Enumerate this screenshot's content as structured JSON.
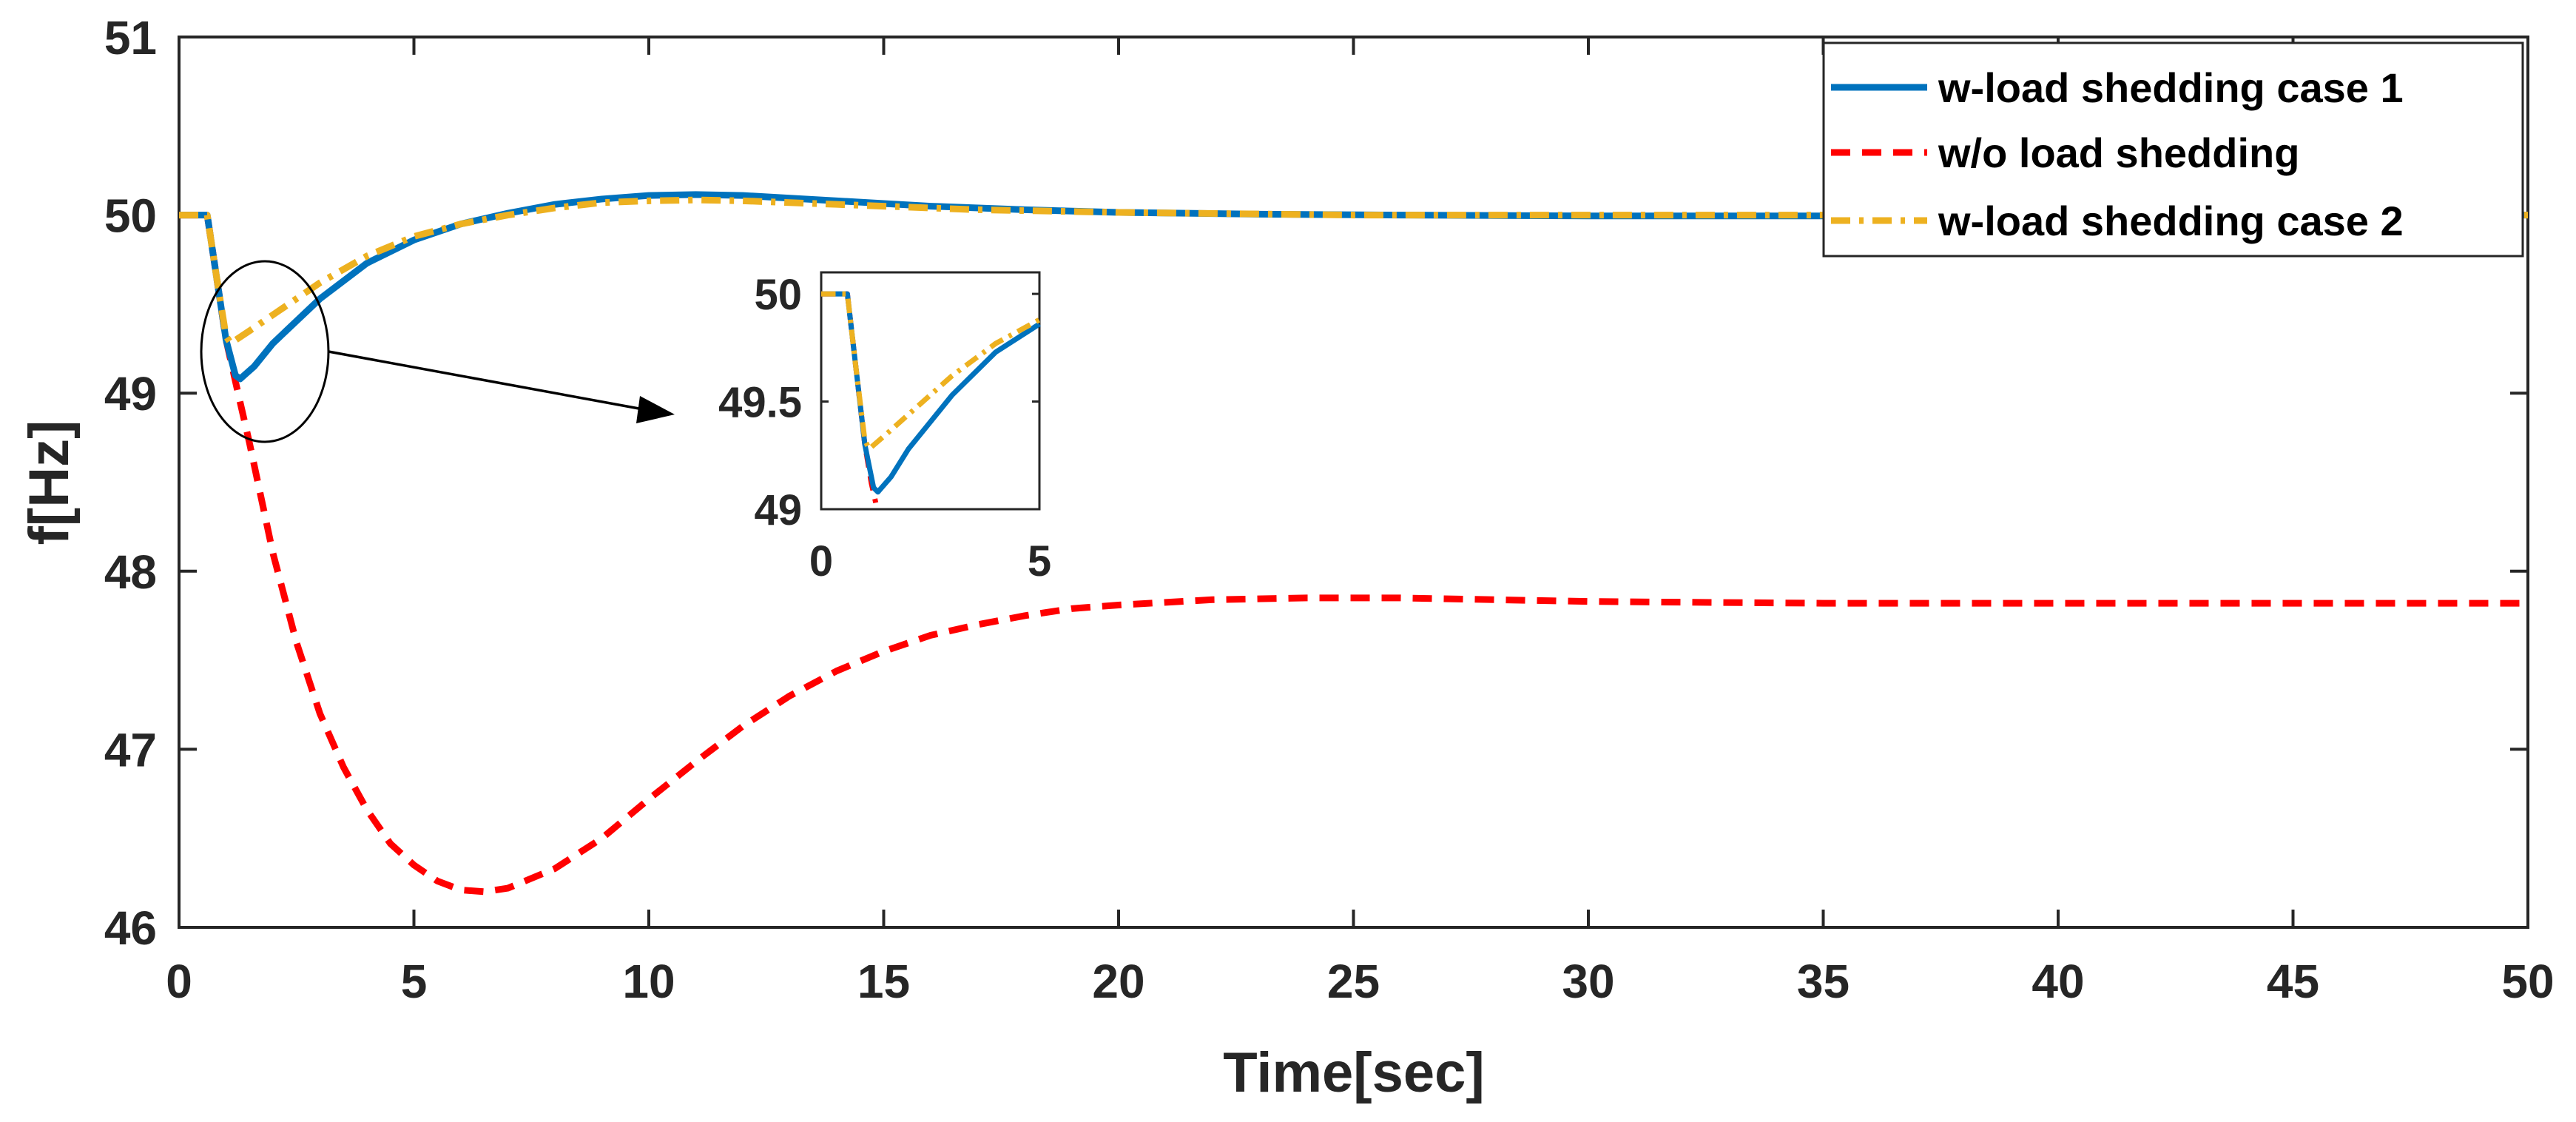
{
  "chart_data": [
    {
      "id": "main",
      "type": "line",
      "title": "",
      "xlabel": "Time[sec]",
      "ylabel": "f[Hz]",
      "xlim": [
        0,
        50
      ],
      "ylim": [
        46,
        51
      ],
      "xticks": [
        0,
        5,
        10,
        15,
        20,
        25,
        30,
        35,
        40,
        45,
        50
      ],
      "yticks": [
        46,
        47,
        48,
        49,
        50,
        51
      ],
      "grid": false,
      "legend_position": "top-right",
      "series": [
        {
          "name": "w-load shedding case 1",
          "color": "#0072BD",
          "style": "solid",
          "points": [
            [
              0,
              50
            ],
            [
              0.5,
              50
            ],
            [
              0.6,
              50
            ],
            [
              0.8,
              49.65
            ],
            [
              1.0,
              49.3
            ],
            [
              1.2,
              49.1
            ],
            [
              1.3,
              49.08
            ],
            [
              1.6,
              49.15
            ],
            [
              2.0,
              49.28
            ],
            [
              3,
              49.53
            ],
            [
              4,
              49.73
            ],
            [
              5,
              49.86
            ],
            [
              6,
              49.95
            ],
            [
              7,
              50.01
            ],
            [
              8,
              50.06
            ],
            [
              9,
              50.09
            ],
            [
              10,
              50.11
            ],
            [
              11,
              50.115
            ],
            [
              12,
              50.11
            ],
            [
              13,
              50.095
            ],
            [
              14,
              50.08
            ],
            [
              15,
              50.065
            ],
            [
              16,
              50.05
            ],
            [
              18,
              50.03
            ],
            [
              20,
              50.015
            ],
            [
              23,
              50.005
            ],
            [
              26,
              50
            ],
            [
              30,
              49.995
            ],
            [
              35,
              49.995
            ],
            [
              40,
              50
            ],
            [
              45,
              50
            ],
            [
              50,
              50
            ]
          ]
        },
        {
          "name": "w/o load shedding",
          "color": "#FF0000",
          "style": "dashed",
          "points": [
            [
              0,
              50
            ],
            [
              0.5,
              50
            ],
            [
              0.6,
              50
            ],
            [
              0.8,
              49.65
            ],
            [
              1.0,
              49.3
            ],
            [
              1.3,
              48.95
            ],
            [
              1.5,
              48.72
            ],
            [
              2,
              48.1
            ],
            [
              2.5,
              47.6
            ],
            [
              3,
              47.2
            ],
            [
              3.5,
              46.9
            ],
            [
              4,
              46.66
            ],
            [
              4.5,
              46.47
            ],
            [
              5,
              46.35
            ],
            [
              5.5,
              46.26
            ],
            [
              6,
              46.21
            ],
            [
              6.5,
              46.2
            ],
            [
              7,
              46.22
            ],
            [
              8,
              46.33
            ],
            [
              9,
              46.5
            ],
            [
              10,
              46.72
            ],
            [
              11,
              46.93
            ],
            [
              12,
              47.13
            ],
            [
              13,
              47.3
            ],
            [
              14,
              47.44
            ],
            [
              15,
              47.55
            ],
            [
              16,
              47.64
            ],
            [
              17,
              47.7
            ],
            [
              18,
              47.75
            ],
            [
              19,
              47.79
            ],
            [
              20,
              47.81
            ],
            [
              22,
              47.84
            ],
            [
              24,
              47.85
            ],
            [
              26,
              47.85
            ],
            [
              28,
              47.84
            ],
            [
              30,
              47.83
            ],
            [
              35,
              47.82
            ],
            [
              40,
              47.82
            ],
            [
              45,
              47.82
            ],
            [
              50,
              47.82
            ]
          ]
        },
        {
          "name": "w-load shedding case 2",
          "color": "#EDB120",
          "style": "dashdot",
          "points": [
            [
              0,
              50
            ],
            [
              0.5,
              50
            ],
            [
              0.6,
              50
            ],
            [
              0.8,
              49.65
            ],
            [
              1.0,
              49.32
            ],
            [
              1.1,
              49.28
            ],
            [
              1.5,
              49.35
            ],
            [
              2,
              49.44
            ],
            [
              3,
              49.62
            ],
            [
              4,
              49.77
            ],
            [
              5,
              49.88
            ],
            [
              6,
              49.95
            ],
            [
              7,
              50.0
            ],
            [
              8,
              50.04
            ],
            [
              9,
              50.07
            ],
            [
              10,
              50.08
            ],
            [
              11,
              50.085
            ],
            [
              12,
              50.08
            ],
            [
              13,
              50.07
            ],
            [
              14,
              50.06
            ],
            [
              15,
              50.05
            ],
            [
              17,
              50.03
            ],
            [
              20,
              50.015
            ],
            [
              25,
              50.0
            ],
            [
              30,
              50
            ],
            [
              35,
              50
            ],
            [
              40,
              50
            ],
            [
              45,
              50
            ],
            [
              50,
              50
            ]
          ]
        }
      ],
      "annotation": "ellipse around the frequency nadir near t = 1–3 s with an arrow pointing to the inset"
    },
    {
      "id": "inset",
      "type": "line",
      "title": "",
      "xlabel": "",
      "ylabel": "",
      "xlim": [
        0,
        5
      ],
      "ylim": [
        49,
        50.1
      ],
      "xticks": [
        0,
        5
      ],
      "yticks": [
        49,
        49.5,
        50
      ],
      "grid": false,
      "series": [
        {
          "name": "w-load shedding case 1",
          "color": "#0072BD",
          "style": "solid",
          "points": [
            [
              0,
              50
            ],
            [
              0.5,
              50
            ],
            [
              0.6,
              50
            ],
            [
              0.8,
              49.65
            ],
            [
              1.0,
              49.3
            ],
            [
              1.2,
              49.1
            ],
            [
              1.3,
              49.08
            ],
            [
              1.6,
              49.15
            ],
            [
              2,
              49.28
            ],
            [
              3,
              49.53
            ],
            [
              4,
              49.73
            ],
            [
              5,
              49.86
            ]
          ]
        },
        {
          "name": "w/o load shedding",
          "color": "#FF0000",
          "style": "dashed",
          "points": [
            [
              0,
              50
            ],
            [
              0.5,
              50
            ],
            [
              0.6,
              50
            ],
            [
              0.8,
              49.65
            ],
            [
              1.0,
              49.3
            ],
            [
              1.15,
              49.12
            ],
            [
              1.25,
              49.03
            ]
          ]
        },
        {
          "name": "w-load shedding case 2",
          "color": "#EDB120",
          "style": "dashdot",
          "points": [
            [
              0,
              50
            ],
            [
              0.5,
              50
            ],
            [
              0.6,
              50
            ],
            [
              0.8,
              49.65
            ],
            [
              1.0,
              49.32
            ],
            [
              1.1,
              49.28
            ],
            [
              1.5,
              49.35
            ],
            [
              2,
              49.44
            ],
            [
              3,
              49.62
            ],
            [
              4,
              49.77
            ],
            [
              5,
              49.88
            ]
          ]
        }
      ]
    }
  ]
}
